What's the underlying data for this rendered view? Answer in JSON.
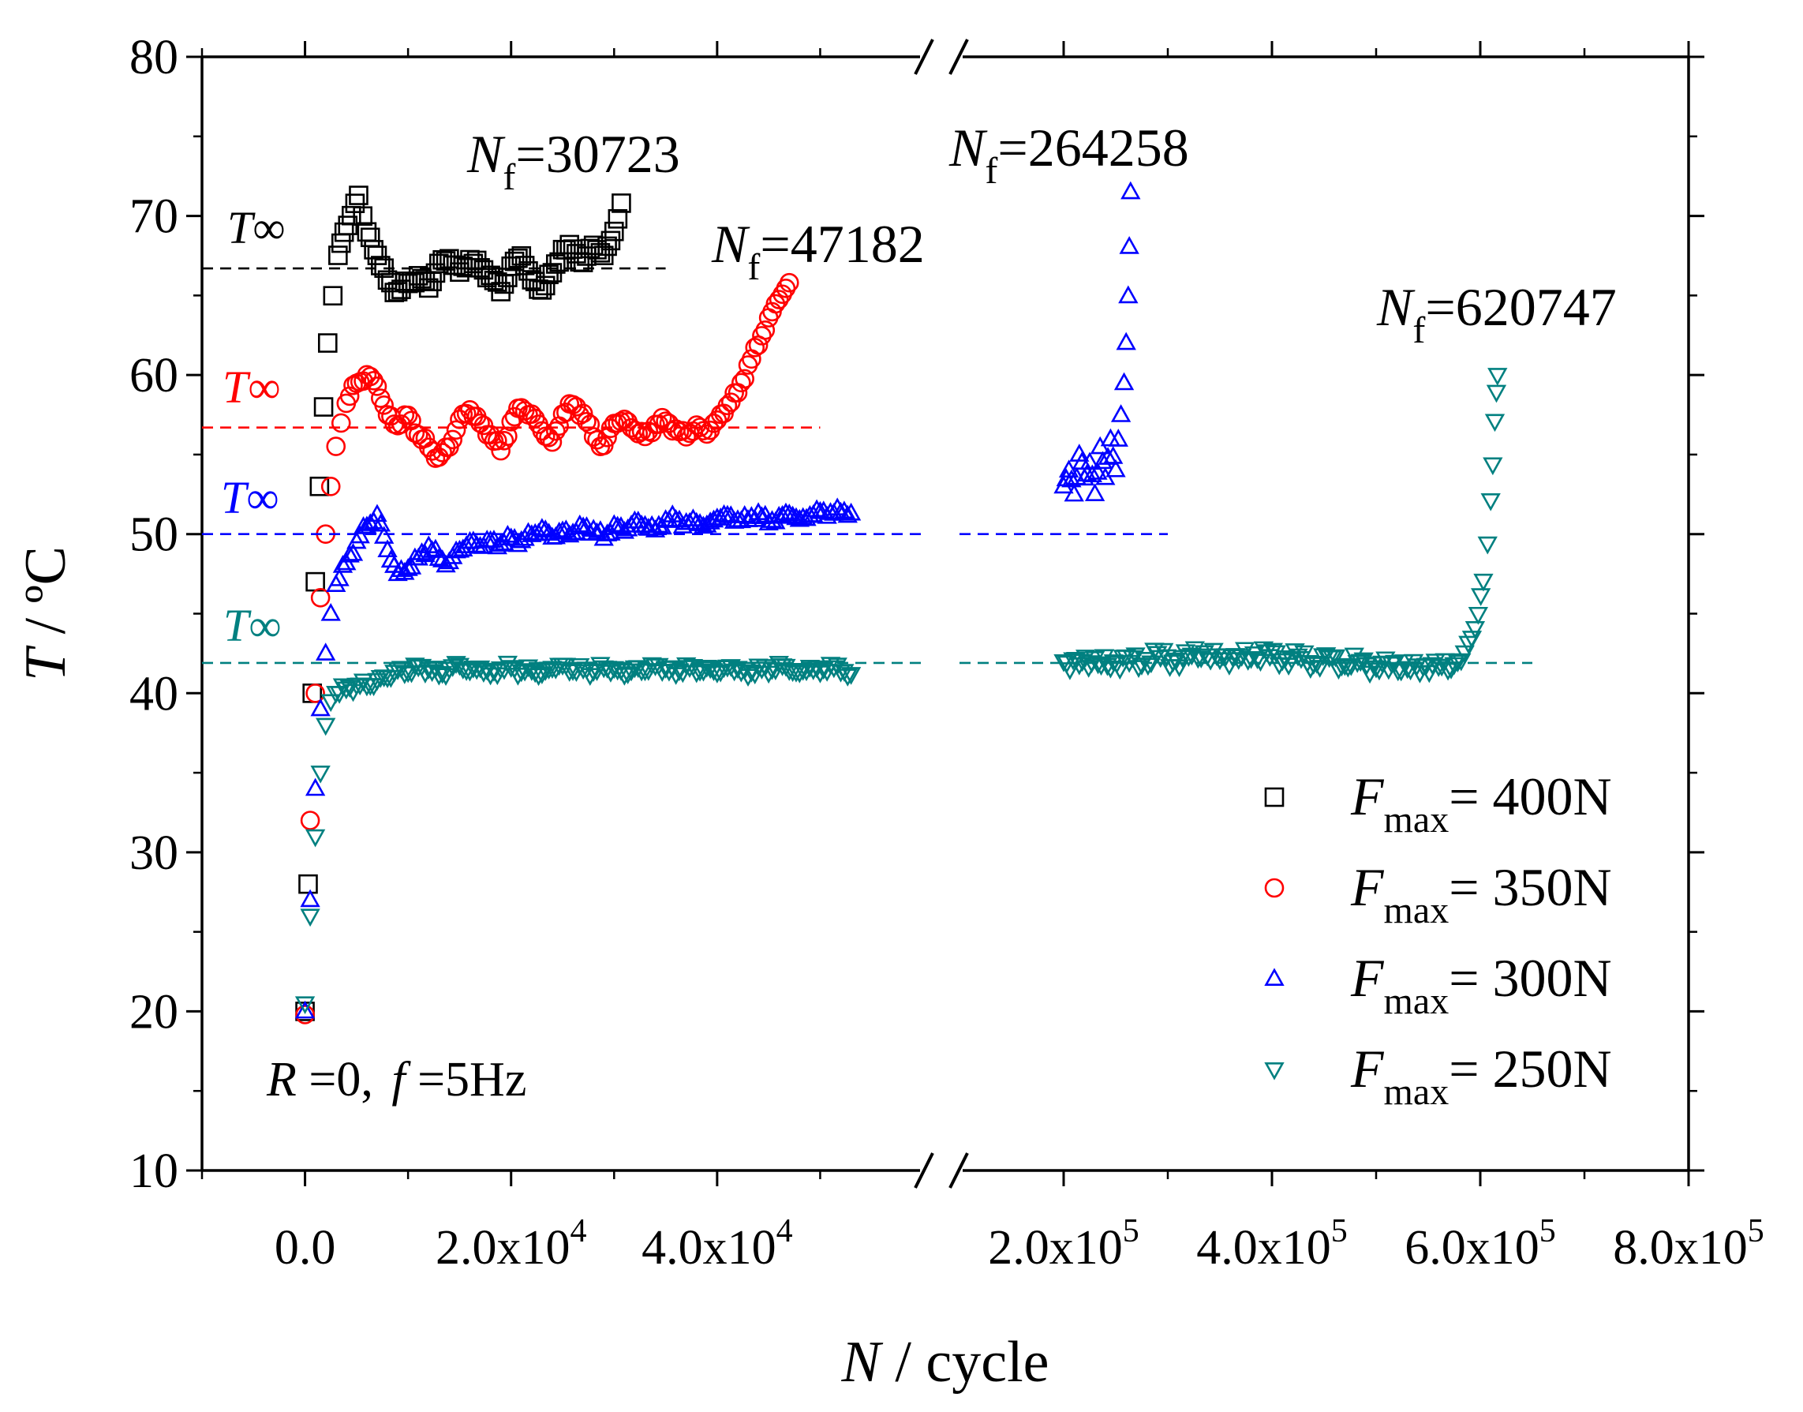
{
  "chart_data": {
    "type": "scatter",
    "xlabel": {
      "italic": "N",
      "rest": " / cycle"
    },
    "ylabel": {
      "italic": "T",
      "rest": " / ºC"
    },
    "ylim": [
      10,
      80
    ],
    "yticks": [
      10,
      20,
      30,
      40,
      50,
      60,
      70,
      80
    ],
    "x_break": {
      "left": {
        "xlim": [
          -10000,
          60000
        ],
        "ticks": [
          0,
          20000,
          40000
        ],
        "tick_labels": [
          {
            "base": "0.0",
            "exp": ""
          },
          {
            "base": "2.0x10",
            "exp": "4"
          },
          {
            "base": "4.0x10",
            "exp": "4"
          }
        ]
      },
      "right": {
        "xlim": [
          100000,
          800000
        ],
        "ticks": [
          200000,
          400000,
          600000,
          800000
        ],
        "tick_labels": [
          {
            "base": "2.0x10",
            "exp": "5"
          },
          {
            "base": "4.0x10",
            "exp": "5"
          },
          {
            "base": "6.0x10",
            "exp": "5"
          },
          {
            "base": "8.0x10",
            "exp": "5"
          }
        ]
      }
    },
    "series": [
      {
        "name": "Fmax = 400N",
        "legend_italic": "F",
        "legend_sub": "max",
        "legend_rest": "= 400N",
        "marker": "square",
        "color": "#000000",
        "T_inf": 66.7,
        "Nf_value": "30723",
        "left_points": [
          [
            0,
            20
          ],
          [
            300,
            28
          ],
          [
            700,
            40
          ],
          [
            1000,
            47
          ],
          [
            1400,
            53
          ],
          [
            1800,
            58
          ],
          [
            2200,
            62
          ],
          [
            2700,
            65
          ],
          [
            3200,
            67.5
          ],
          [
            3800,
            69
          ],
          [
            4500,
            70
          ],
          [
            5200,
            71.3
          ],
          [
            6000,
            69
          ],
          [
            7000,
            67.5
          ],
          [
            8000,
            66
          ],
          [
            9000,
            65.2
          ],
          [
            10000,
            65.8
          ],
          [
            11000,
            66.2
          ],
          [
            12000,
            65.5
          ],
          [
            13000,
            67
          ],
          [
            14000,
            67.3
          ],
          [
            15000,
            66.5
          ],
          [
            16000,
            67.2
          ],
          [
            17000,
            66.8
          ],
          [
            18000,
            66.2
          ],
          [
            19000,
            65.3
          ],
          [
            20000,
            66.8
          ],
          [
            21000,
            67.5
          ],
          [
            22000,
            66
          ],
          [
            23000,
            65.3
          ],
          [
            24000,
            66.5
          ],
          [
            25000,
            67.8
          ],
          [
            26000,
            68
          ],
          [
            27000,
            67
          ],
          [
            28000,
            68.2
          ],
          [
            29000,
            67.5
          ],
          [
            30000,
            69
          ],
          [
            30700,
            70.8
          ]
        ],
        "right_points": []
      },
      {
        "name": "Fmax = 350N",
        "legend_italic": "F",
        "legend_sub": "max",
        "legend_rest": "= 350N",
        "marker": "circle",
        "color": "#ff0000",
        "T_inf": 56.7,
        "Nf_value": "47182",
        "left_points": [
          [
            0,
            19.8
          ],
          [
            500,
            32
          ],
          [
            1000,
            40
          ],
          [
            1500,
            46
          ],
          [
            2000,
            50
          ],
          [
            2500,
            53
          ],
          [
            3000,
            55.5
          ],
          [
            3500,
            57
          ],
          [
            4000,
            58.2
          ],
          [
            5000,
            59.5
          ],
          [
            6000,
            60
          ],
          [
            7000,
            59.3
          ],
          [
            8000,
            57.5
          ],
          [
            9000,
            56.8
          ],
          [
            10000,
            57.5
          ],
          [
            11000,
            56.2
          ],
          [
            12000,
            55.5
          ],
          [
            13000,
            54.8
          ],
          [
            14000,
            55.5
          ],
          [
            15000,
            57.2
          ],
          [
            16000,
            57.8
          ],
          [
            17000,
            57
          ],
          [
            18000,
            56.2
          ],
          [
            19000,
            55.3
          ],
          [
            20000,
            57
          ],
          [
            21000,
            58
          ],
          [
            22000,
            57.5
          ],
          [
            23000,
            56.5
          ],
          [
            24000,
            55.8
          ],
          [
            25000,
            57.5
          ],
          [
            26000,
            58.2
          ],
          [
            27000,
            57.5
          ],
          [
            28000,
            56.2
          ],
          [
            29000,
            55.5
          ],
          [
            30000,
            57
          ],
          [
            31000,
            57.2
          ],
          [
            32000,
            56.5
          ],
          [
            33000,
            56.2
          ],
          [
            34000,
            56.8
          ],
          [
            35000,
            57.2
          ],
          [
            36000,
            56.5
          ],
          [
            37000,
            56.2
          ],
          [
            38000,
            56.8
          ],
          [
            39000,
            56.3
          ],
          [
            40000,
            57.2
          ],
          [
            41000,
            58
          ],
          [
            42000,
            59
          ],
          [
            43000,
            60.5
          ],
          [
            44000,
            62
          ],
          [
            45000,
            63.5
          ],
          [
            46000,
            64.8
          ],
          [
            47000,
            65.8
          ]
        ],
        "right_points": []
      },
      {
        "name": "Fmax = 300N",
        "legend_italic": "F",
        "legend_sub": "max",
        "legend_rest": "= 300N",
        "marker": "triangle-up",
        "color": "#0000ff",
        "T_inf": 50.0,
        "Nf_value": "264258",
        "left_points": [
          [
            0,
            20
          ],
          [
            500,
            27
          ],
          [
            1000,
            34
          ],
          [
            1500,
            39
          ],
          [
            2000,
            42.5
          ],
          [
            2500,
            45
          ],
          [
            3000,
            46.8
          ],
          [
            4000,
            48.2
          ],
          [
            5000,
            49.5
          ],
          [
            6000,
            50.5
          ],
          [
            7000,
            51.2
          ],
          [
            8000,
            49
          ],
          [
            9000,
            47.5
          ],
          [
            10000,
            47.8
          ],
          [
            11000,
            48.5
          ],
          [
            12000,
            49.2
          ],
          [
            13000,
            48.5
          ],
          [
            14000,
            48.2
          ],
          [
            15000,
            49
          ],
          [
            16000,
            49.5
          ],
          [
            17000,
            49.2
          ],
          [
            18000,
            49.6
          ],
          [
            19000,
            49.3
          ],
          [
            20000,
            49.8
          ],
          [
            21000,
            49.5
          ],
          [
            22000,
            50
          ],
          [
            23000,
            50.3
          ],
          [
            24000,
            49.8
          ],
          [
            25000,
            50.2
          ],
          [
            26000,
            50
          ],
          [
            27000,
            50.5
          ],
          [
            28000,
            50.2
          ],
          [
            29000,
            49.8
          ],
          [
            30000,
            50.5
          ],
          [
            31000,
            50.2
          ],
          [
            32000,
            50.8
          ],
          [
            33000,
            50.5
          ],
          [
            34000,
            50.3
          ],
          [
            35000,
            50.8
          ],
          [
            36000,
            51
          ],
          [
            37000,
            50.6
          ],
          [
            38000,
            50.8
          ],
          [
            39000,
            50.5
          ],
          [
            40000,
            51
          ],
          [
            41000,
            51.2
          ],
          [
            42000,
            50.8
          ],
          [
            43000,
            51
          ],
          [
            44000,
            51.2
          ],
          [
            45000,
            50.8
          ],
          [
            46000,
            51
          ],
          [
            47000,
            51.3
          ],
          [
            48000,
            50.9
          ],
          [
            49000,
            51.1
          ],
          [
            50000,
            51.5
          ],
          [
            51000,
            51.2
          ],
          [
            52000,
            51.5
          ],
          [
            53000,
            51.3
          ]
        ],
        "right_points": [
          [
            200000,
            53
          ],
          [
            205000,
            54
          ],
          [
            210000,
            52.5
          ],
          [
            215000,
            55
          ],
          [
            220000,
            53.5
          ],
          [
            225000,
            54.5
          ],
          [
            230000,
            52.5
          ],
          [
            235000,
            55.5
          ],
          [
            240000,
            53.5
          ],
          [
            245000,
            56
          ],
          [
            250000,
            54
          ],
          [
            255000,
            57.5
          ],
          [
            258000,
            59.5
          ],
          [
            260000,
            62
          ],
          [
            262000,
            65
          ],
          [
            263000,
            68
          ],
          [
            264258,
            71.5
          ]
        ]
      },
      {
        "name": "Fmax = 250N",
        "legend_italic": "F",
        "legend_sub": "max",
        "legend_rest": "= 250N",
        "marker": "triangle-down",
        "color": "#008080",
        "T_inf": 41.9,
        "Nf_value": "620747",
        "left_points": [
          [
            0,
            20.5
          ],
          [
            500,
            26
          ],
          [
            1000,
            31
          ],
          [
            1500,
            35
          ],
          [
            2000,
            38
          ],
          [
            2500,
            39.5
          ],
          [
            3000,
            40
          ],
          [
            4000,
            40.3
          ],
          [
            5000,
            40.5
          ],
          [
            6000,
            40.5
          ],
          [
            7000,
            40.8
          ],
          [
            8000,
            41
          ],
          [
            9000,
            41.5
          ],
          [
            10000,
            41.3
          ],
          [
            11000,
            41.7
          ],
          [
            12000,
            41.5
          ],
          [
            13000,
            41.2
          ],
          [
            14000,
            41.5
          ],
          [
            15000,
            41.8
          ],
          [
            16000,
            41.4
          ],
          [
            17000,
            41.6
          ],
          [
            18000,
            41.2
          ],
          [
            19000,
            41.5
          ],
          [
            20000,
            41.7
          ],
          [
            21000,
            41.3
          ],
          [
            22000,
            41.5
          ],
          [
            23000,
            41.2
          ],
          [
            24000,
            41.6
          ],
          [
            25000,
            41.8
          ],
          [
            26000,
            41.4
          ],
          [
            27000,
            41.6
          ],
          [
            28000,
            41.3
          ],
          [
            29000,
            41.7
          ],
          [
            30000,
            41.5
          ],
          [
            31000,
            41.2
          ],
          [
            32000,
            41.6
          ],
          [
            33000,
            41.4
          ],
          [
            34000,
            41.8
          ],
          [
            35000,
            41.5
          ],
          [
            36000,
            41.3
          ],
          [
            37000,
            41.7
          ],
          [
            38000,
            41.4
          ],
          [
            39000,
            41.6
          ],
          [
            40000,
            41.3
          ],
          [
            41000,
            41.7
          ],
          [
            42000,
            41.5
          ],
          [
            43000,
            41.2
          ],
          [
            44000,
            41.6
          ],
          [
            45000,
            41.4
          ],
          [
            46000,
            41.8
          ],
          [
            47000,
            41.5
          ],
          [
            48000,
            41.3
          ],
          [
            49000,
            41.6
          ],
          [
            50000,
            41.4
          ],
          [
            51000,
            41.7
          ],
          [
            52000,
            41.5
          ],
          [
            53000,
            41.2
          ]
        ],
        "right_points": [
          [
            200000,
            42
          ],
          [
            215000,
            41.8
          ],
          [
            230000,
            42.2
          ],
          [
            245000,
            41.6
          ],
          [
            260000,
            42.3
          ],
          [
            275000,
            41.8
          ],
          [
            290000,
            42.5
          ],
          [
            305000,
            42
          ],
          [
            320000,
            42.3
          ],
          [
            335000,
            42.6
          ],
          [
            350000,
            42.1
          ],
          [
            365000,
            42.4
          ],
          [
            380000,
            42.2
          ],
          [
            395000,
            42.6
          ],
          [
            410000,
            42.1
          ],
          [
            425000,
            42.3
          ],
          [
            440000,
            41.9
          ],
          [
            455000,
            42.2
          ],
          [
            470000,
            41.8
          ],
          [
            485000,
            42
          ],
          [
            500000,
            41.6
          ],
          [
            515000,
            41.9
          ],
          [
            530000,
            41.5
          ],
          [
            545000,
            41.8
          ],
          [
            560000,
            41.6
          ],
          [
            575000,
            41.9
          ],
          [
            585000,
            42.5
          ],
          [
            592000,
            43.5
          ],
          [
            598000,
            45
          ],
          [
            603000,
            47
          ],
          [
            607000,
            49.5
          ],
          [
            610000,
            52
          ],
          [
            612000,
            54.5
          ],
          [
            614000,
            57
          ],
          [
            615500,
            59
          ],
          [
            616500,
            60
          ]
        ]
      }
    ],
    "annotations": {
      "t_inf_base": "T",
      "t_inf_symbol": "∞",
      "nf_italic": "N",
      "nf_sub": "f",
      "nf_eq": "=",
      "conditions": {
        "r_italic": "R",
        "r_rest": " =0,  ",
        "f_italic": "f",
        "f_rest": " =5Hz"
      }
    },
    "legend_position": "bottom-right"
  }
}
